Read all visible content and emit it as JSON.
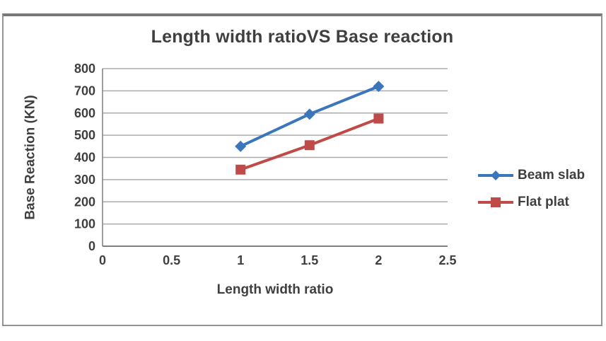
{
  "chart_data": {
    "type": "line",
    "title": "Length width ratioVS Base reaction",
    "xlabel": "Length width ratio",
    "ylabel": "Base Reaction (KN)",
    "x": [
      1,
      1.5,
      2
    ],
    "series": [
      {
        "name": "Beam slab",
        "values": [
          450,
          595,
          720
        ],
        "color": "#3B76BC",
        "marker": "diamond"
      },
      {
        "name": "Flat plat",
        "values": [
          345,
          455,
          575
        ],
        "color": "#BF4A47",
        "marker": "square"
      }
    ],
    "xlim": [
      0,
      2.5
    ],
    "ylim": [
      0,
      800
    ],
    "xticks": [
      0,
      0.5,
      1,
      1.5,
      2,
      2.5
    ],
    "yticks": [
      0,
      100,
      200,
      300,
      400,
      500,
      600,
      700,
      800
    ],
    "grid": true,
    "legend_position": "right"
  },
  "colors": {
    "text": "#3F3F3F",
    "gridline": "#ABABAB",
    "axis_line": "#7F7F7F",
    "frame_border": "#949494",
    "background": "#FFFFFF"
  }
}
